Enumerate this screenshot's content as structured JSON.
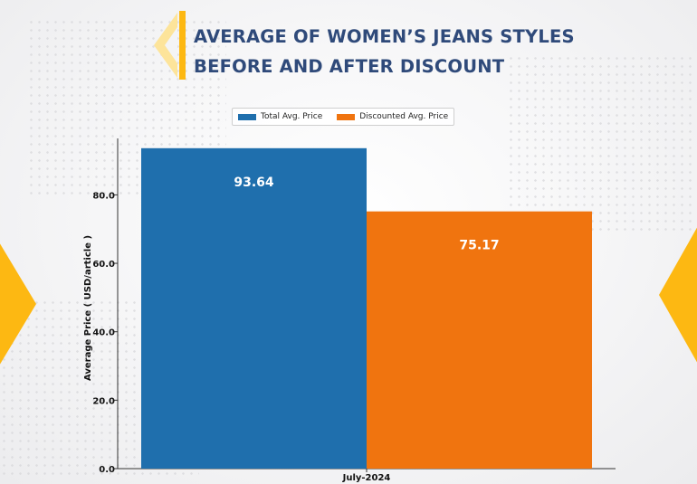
{
  "page": {
    "title_lines": [
      "AVERAGE OF WOMEN’S JEANS STYLES",
      "BEFORE AND AFTER DISCOUNT"
    ],
    "accent_color": "#fdb812",
    "title_color": "#2f4a7a"
  },
  "chart_data": {
    "type": "bar",
    "title": "AVERAGE OF WOMEN’S JEANS STYLES BEFORE AND AFTER DISCOUNT",
    "categories": [
      "July-2024"
    ],
    "series": [
      {
        "name": "Total Avg. Price",
        "values": [
          93.64
        ],
        "color": "#1f6fad",
        "label": "93.64"
      },
      {
        "name": "Discounted Avg. Price",
        "values": [
          75.17
        ],
        "color": "#f0740f",
        "label": "75.17"
      }
    ],
    "xlabel": "",
    "ylabel": "Average Price ( USD/article )",
    "ylim": [
      0,
      96.5
    ],
    "yticks": [
      0,
      20,
      40,
      60,
      80
    ],
    "ytick_labels": [
      "0.0",
      "20.0",
      "40.0",
      "60.0",
      "80.0"
    ],
    "grid": false,
    "legend_position": "top-center"
  }
}
